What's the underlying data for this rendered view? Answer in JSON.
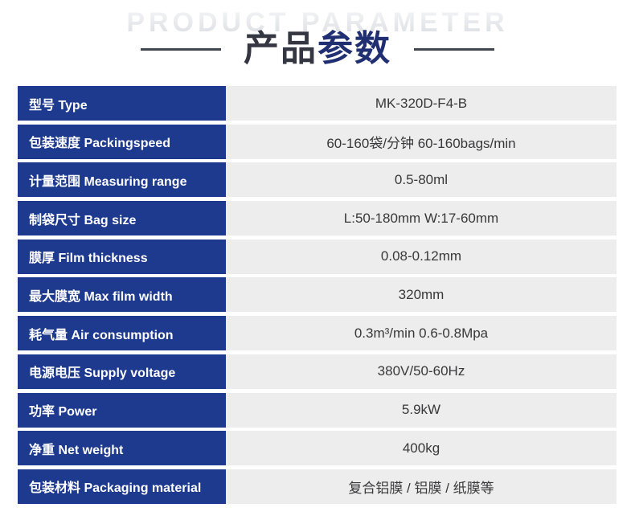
{
  "header": {
    "ghost_title": "PRODUCT PARAMETER",
    "title_primary": "产品",
    "title_accent": "参数"
  },
  "colors": {
    "label_bg": "#1e3a8e",
    "value_bg": "#ededed",
    "title_dark": "#343741",
    "title_accent_navy": "#202f72",
    "ghost_gray": "#e4e6ea",
    "value_text": "#38383a"
  },
  "table": {
    "rows": [
      {
        "label": "型号 Type",
        "value": "MK-320D-F4-B"
      },
      {
        "label": "包装速度 Packingspeed",
        "value": "60-160袋/分钟 60-160bags/min"
      },
      {
        "label": "计量范围 Measuring range",
        "value": "0.5-80ml"
      },
      {
        "label": "制袋尺寸 Bag size",
        "value": "L:50-180mm W:17-60mm"
      },
      {
        "label": "膜厚 Film thickness",
        "value": "0.08-0.12mm"
      },
      {
        "label": "最大膜宽 Max film width",
        "value": "320mm"
      },
      {
        "label": "耗气量 Air consumption",
        "value": "0.3m³/min 0.6-0.8Mpa"
      },
      {
        "label": "电源电压 Supply voltage",
        "value": "380V/50-60Hz"
      },
      {
        "label": "功率 Power",
        "value": "5.9kW"
      },
      {
        "label": "净重 Net weight",
        "value": "400kg"
      },
      {
        "label": "包装材料 Packaging material",
        "value": "复合铝膜 / 铝膜 / 纸膜等"
      }
    ]
  }
}
